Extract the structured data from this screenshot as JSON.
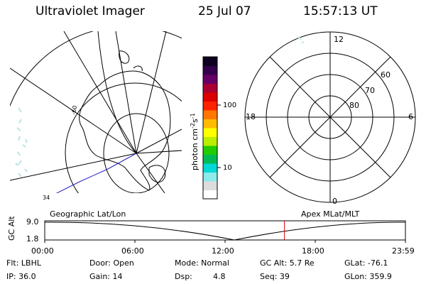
{
  "header": {
    "title": "Ultraviolet Imager",
    "date": "25 Jul 07",
    "time": "15:57:13 UT"
  },
  "colorbar": {
    "unit": "photon cm",
    "unit_exp1": "-2",
    "unit_s": "s",
    "unit_exp2": "-1",
    "tick_high": "100",
    "tick_low": "10",
    "colors": [
      "#ffffff",
      "#dcdcdc",
      "#8cebeb",
      "#00d8d8",
      "#00bb55",
      "#22cc00",
      "#bbee00",
      "#ffff00",
      "#ffbb00",
      "#ff7700",
      "#ff2200",
      "#dd0000",
      "#aa0033",
      "#660066",
      "#33004d",
      "#0d0020"
    ]
  },
  "polar_plot": {
    "labels": {
      "top": "12",
      "bottom": "0",
      "left": "18",
      "right": "6",
      "lat60": "60",
      "lat70": "70",
      "lat80": "80"
    }
  },
  "timeline": {
    "label_left": "Geographic Lat/Lon",
    "label_right": "Apex MLat/MLT",
    "axis_name": "GC Alt",
    "y_top": "9.0",
    "y_bottom": "1.8",
    "ticks": [
      "00:00",
      "06:00",
      "12:00",
      "18:00",
      "23:59"
    ],
    "current_time_hours": 15.95
  },
  "info": {
    "flt": "Flt: LBHL",
    "door": "Door: Open",
    "mode": "Mode: Normal",
    "gc_alt": "GC Alt: 5.7 Re",
    "glat": "GLat: -76.1",
    "ip": "IP: 36.0",
    "gain": "Gain: 14",
    "dsp_label": "Dsp:",
    "dsp_value": "4.8",
    "seq": "Seq: 39",
    "glon": "GLon: 359.9"
  },
  "map": {
    "lat_label": "-60"
  }
}
